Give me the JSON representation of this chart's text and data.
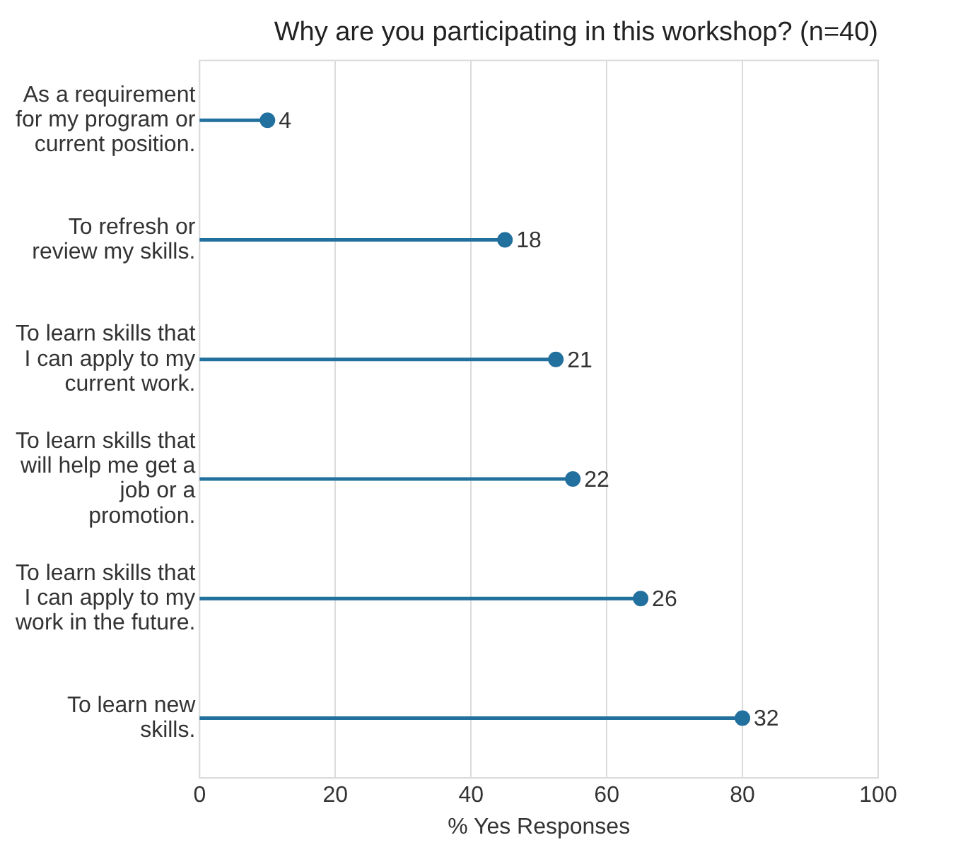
{
  "chart_data": {
    "type": "lollipop",
    "orientation": "horizontal",
    "title": "Why are you participating in this workshop? (n=40)",
    "xlabel": "% Yes Responses",
    "categories": [
      "As a requirement for my program or current position.",
      "To refresh or review my skills.",
      "To learn skills that I can apply to my current work.",
      "To learn skills that will help me get a job or a promotion.",
      "To learn skills that I can apply to my work in the future.",
      "To learn new skills."
    ],
    "values": [
      10,
      45,
      52.5,
      55,
      65,
      80
    ],
    "annotations": [
      {
        "text": "4",
        "x": 10,
        "y": "As a requirement for my program or current position."
      },
      {
        "text": "18",
        "x": 45,
        "y": "To refresh or review my skills."
      },
      {
        "text": "21",
        "x": 52.5,
        "y": "To learn skills that I can apply to my current work."
      },
      {
        "text": "22",
        "x": 55,
        "y": "To learn skills that will help me get a job or a promotion."
      },
      {
        "text": "26",
        "x": 65,
        "y": "To learn skills that I can apply to my work in the future."
      },
      {
        "text": "32",
        "x": 80,
        "y": "To learn new skills."
      }
    ],
    "color": "#22709e",
    "xlim": [
      0,
      100
    ],
    "xticks": [
      0,
      20,
      40,
      60,
      80,
      100
    ],
    "grid": "x",
    "legend": false,
    "marker": "circle"
  }
}
